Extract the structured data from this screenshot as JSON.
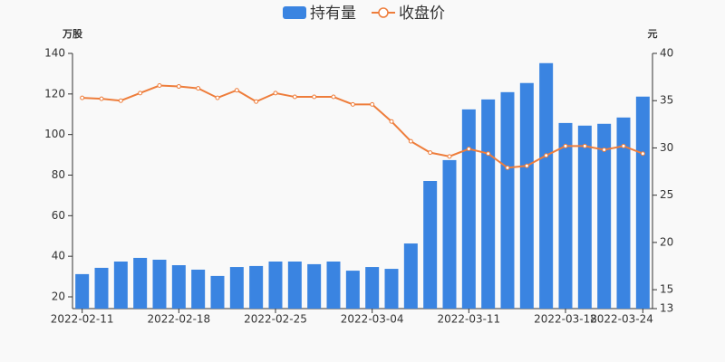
{
  "chart_data": {
    "type": "bar-line",
    "categories": [
      "2022-02-11",
      null,
      null,
      null,
      null,
      "2022-02-18",
      null,
      null,
      null,
      null,
      "2022-02-25",
      null,
      null,
      null,
      null,
      "2022-03-04",
      null,
      null,
      null,
      null,
      "2022-03-11",
      null,
      null,
      null,
      null,
      "2022-03-18",
      null,
      null,
      null,
      "2022-03-24"
    ],
    "y_axis_label": "万股",
    "y2_axis_label": "元",
    "series": [
      {
        "name": "持有量",
        "type": "bar",
        "color": "#3a84e1",
        "values": [
          31.2,
          34.3,
          37.4,
          39.2,
          38.3,
          35.6,
          33.4,
          30.3,
          34.7,
          35.2,
          37.4,
          37.4,
          36.1,
          37.4,
          32.9,
          34.7,
          33.8,
          46.3,
          77.1,
          87.4,
          112.4,
          117.3,
          120.9,
          125.4,
          135.2,
          105.7,
          104.4,
          105.3,
          108.4,
          118.7
        ]
      },
      {
        "name": "收盘价",
        "type": "line",
        "axis": "y2",
        "color": "#ee7d3b",
        "values": [
          35.3,
          35.2,
          35.0,
          35.8,
          36.6,
          36.5,
          36.3,
          35.3,
          36.1,
          34.9,
          35.8,
          35.4,
          35.4,
          35.4,
          34.6,
          34.6,
          32.8,
          30.7,
          29.5,
          29.1,
          29.9,
          29.4,
          27.9,
          28.1,
          29.2,
          30.2,
          30.2,
          29.8,
          30.2,
          29.4
        ]
      }
    ],
    "ylim": [
      14.2,
      140
    ],
    "yticks": [
      20,
      40,
      60,
      80,
      100,
      120,
      140
    ],
    "y2lim": [
      13,
      40
    ],
    "y2ticks": [
      13,
      15,
      20,
      25,
      30,
      35,
      40
    ],
    "grid": false,
    "legend": "top"
  }
}
